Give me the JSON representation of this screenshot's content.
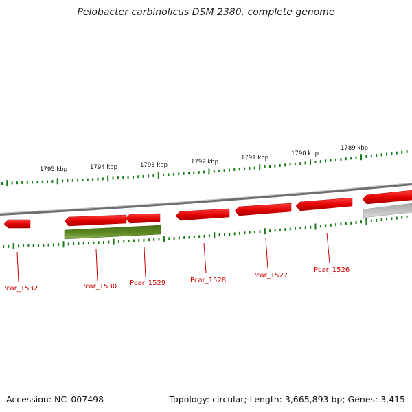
{
  "title": "Pelobacter carbinolicus DSM 2380, complete genome",
  "footer": {
    "accession": "Accession: NC_007498",
    "stats": "Topology: circular; Length: 3,665,893 bp; Genes: 3,415"
  },
  "colors": {
    "tick_mark": "#1a7a1a",
    "backbone": "#7f7f7f",
    "gene_forward": "#e00000",
    "gene_highlight": "#5e8a22",
    "gene_partial": "#bbbbbb",
    "label": "#cc0000"
  },
  "scale_labels": [
    {
      "text": "1795 kbp",
      "position_kbp": 1795
    },
    {
      "text": "1794 kbp",
      "position_kbp": 1794
    },
    {
      "text": "1793 kbp",
      "position_kbp": 1793
    },
    {
      "text": "1792 kbp",
      "position_kbp": 1792
    },
    {
      "text": "1791 kbp",
      "position_kbp": 1791
    },
    {
      "text": "1790 kbp",
      "position_kbp": 1790
    },
    {
      "text": "1789 kbp",
      "position_kbp": 1789
    }
  ],
  "genes": [
    {
      "label": "Pcar_1532",
      "strand": "reverse"
    },
    {
      "label": "Pcar_1530",
      "strand": "reverse"
    },
    {
      "label": "Pcar_1529",
      "strand": "reverse"
    },
    {
      "label": "Pcar_1528",
      "strand": "reverse"
    },
    {
      "label": "Pcar_1527",
      "strand": "reverse"
    },
    {
      "label": "Pcar_1526",
      "strand": "reverse"
    },
    {
      "label": "",
      "strand": "reverse"
    }
  ]
}
